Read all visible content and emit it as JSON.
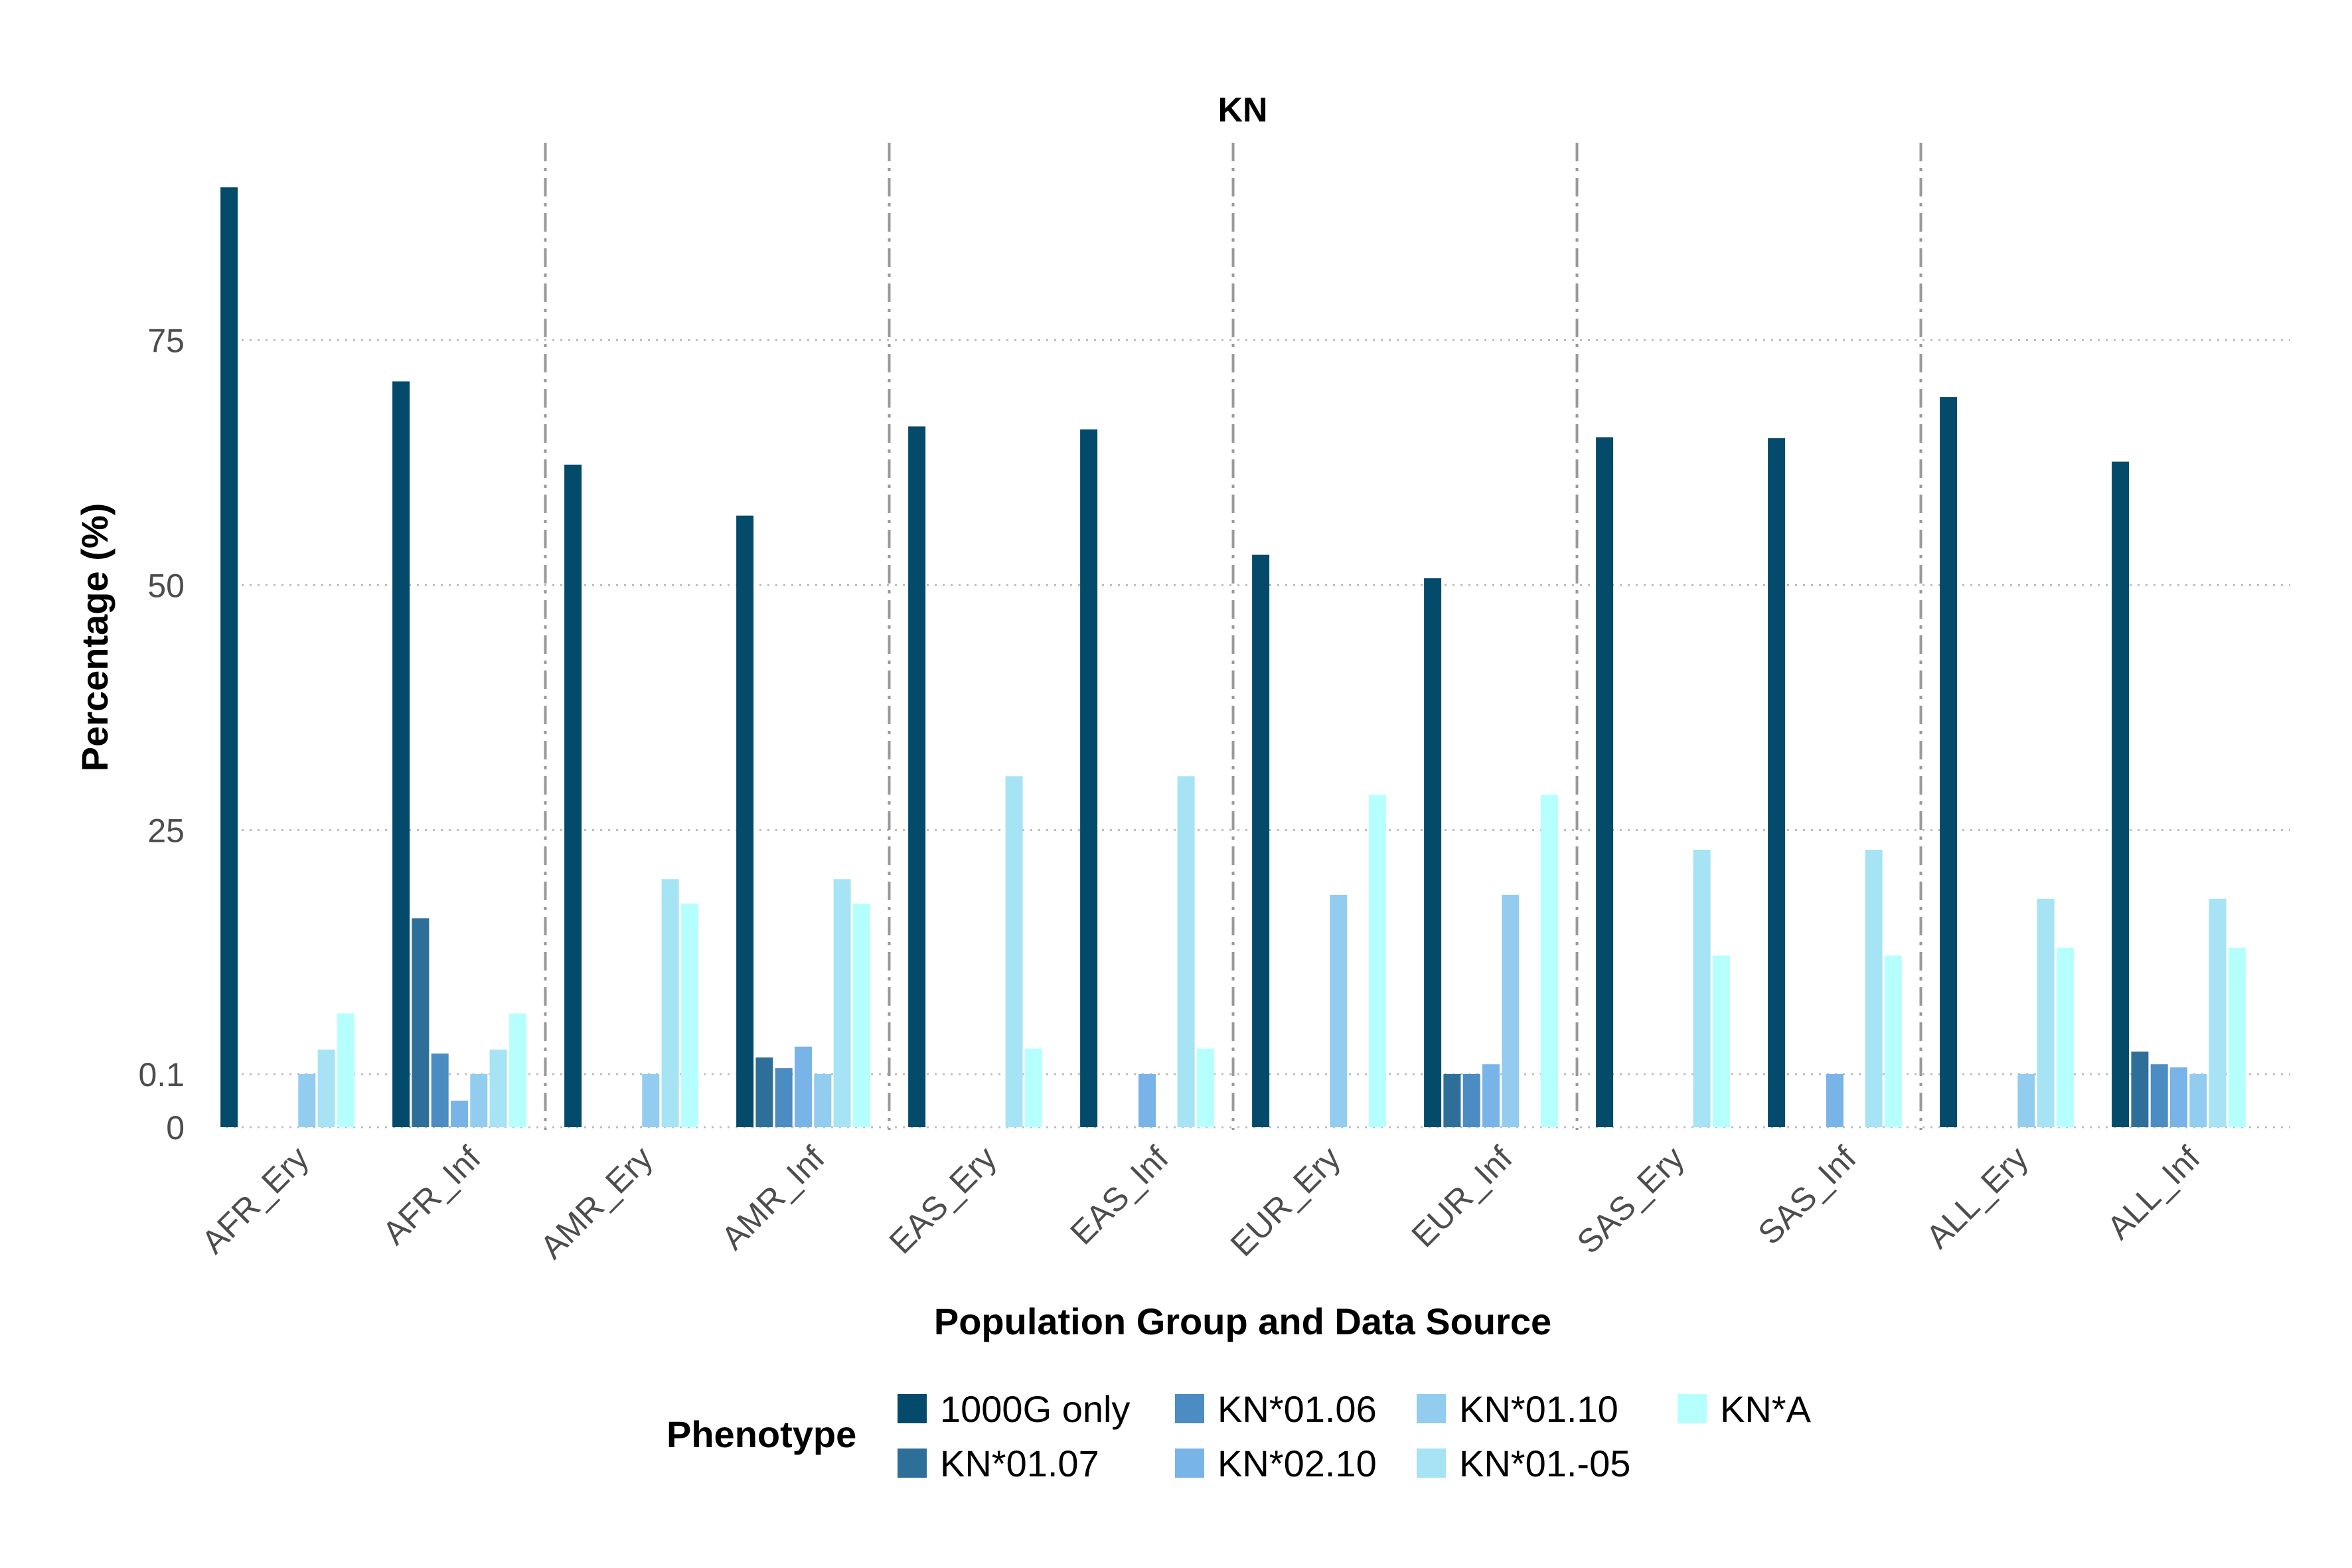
{
  "chart_data": {
    "type": "bar",
    "title": "KN",
    "xlabel": "Population Group and Data Source",
    "ylabel": "Percentage (%)",
    "ylim": [
      -0.1,
      1.0
    ],
    "y_scale": "pseudo-log",
    "y_ticks": [
      {
        "value": 0,
        "label": "0"
      },
      {
        "value": 0.1,
        "label": "0.1"
      },
      {
        "value": 25,
        "label": "25"
      },
      {
        "value": 50,
        "label": "50"
      },
      {
        "value": 75,
        "label": "75"
      }
    ],
    "categories": [
      "AFR_Ery",
      "AFR_Inf",
      "AMR_Ery",
      "AMR_Inf",
      "EAS_Ery",
      "EAS_Inf",
      "EUR_Ery",
      "EUR_Inf",
      "SAS_Ery",
      "SAS_Inf",
      "ALL_Ery",
      "ALL_Inf"
    ],
    "grid": true,
    "legend_title": "Phenotype",
    "legend_position": "bottom",
    "series": [
      {
        "name": "1000G only",
        "color": "#034a6b",
        "values": [
          90.6,
          70.8,
          62.3,
          57.1,
          66.2,
          65.9,
          53.1,
          50.7,
          65.1,
          65.0,
          69.2,
          62.6
        ]
      },
      {
        "name": "KN*01.07",
        "color": "#2e6f9a",
        "values": [
          0,
          16.0,
          0,
          1.8,
          0,
          0,
          0,
          0.1,
          0,
          0,
          0,
          2.4
        ]
      },
      {
        "name": "KN*01.06",
        "color": "#4b8cc2",
        "values": [
          0,
          2.2,
          0,
          0.7,
          0,
          0,
          0,
          0.1,
          0,
          0,
          0,
          1.1
        ]
      },
      {
        "name": "KN*02.10",
        "color": "#79b4e8",
        "values": [
          0,
          0.05,
          0,
          2.9,
          0,
          0.1,
          0,
          1.1,
          0,
          0.1,
          0,
          0.8
        ]
      },
      {
        "name": "KN*01.10",
        "color": "#92cdf0",
        "values": [
          0.1,
          0.1,
          0.1,
          0.1,
          0,
          0,
          18.4,
          18.4,
          0,
          0,
          0.1,
          0.1
        ]
      },
      {
        "name": "KN*01.-05",
        "color": "#a6e3f5",
        "values": [
          2.6,
          2.6,
          20.0,
          20.0,
          30.5,
          30.5,
          0,
          0,
          23.0,
          23.0,
          18.0,
          18.0
        ]
      },
      {
        "name": "KN*A",
        "color": "#b6ffff",
        "values": [
          6.3,
          6.3,
          17.5,
          17.5,
          2.7,
          2.7,
          28.6,
          28.6,
          12.2,
          12.2,
          13.0,
          13.0
        ]
      }
    ]
  }
}
